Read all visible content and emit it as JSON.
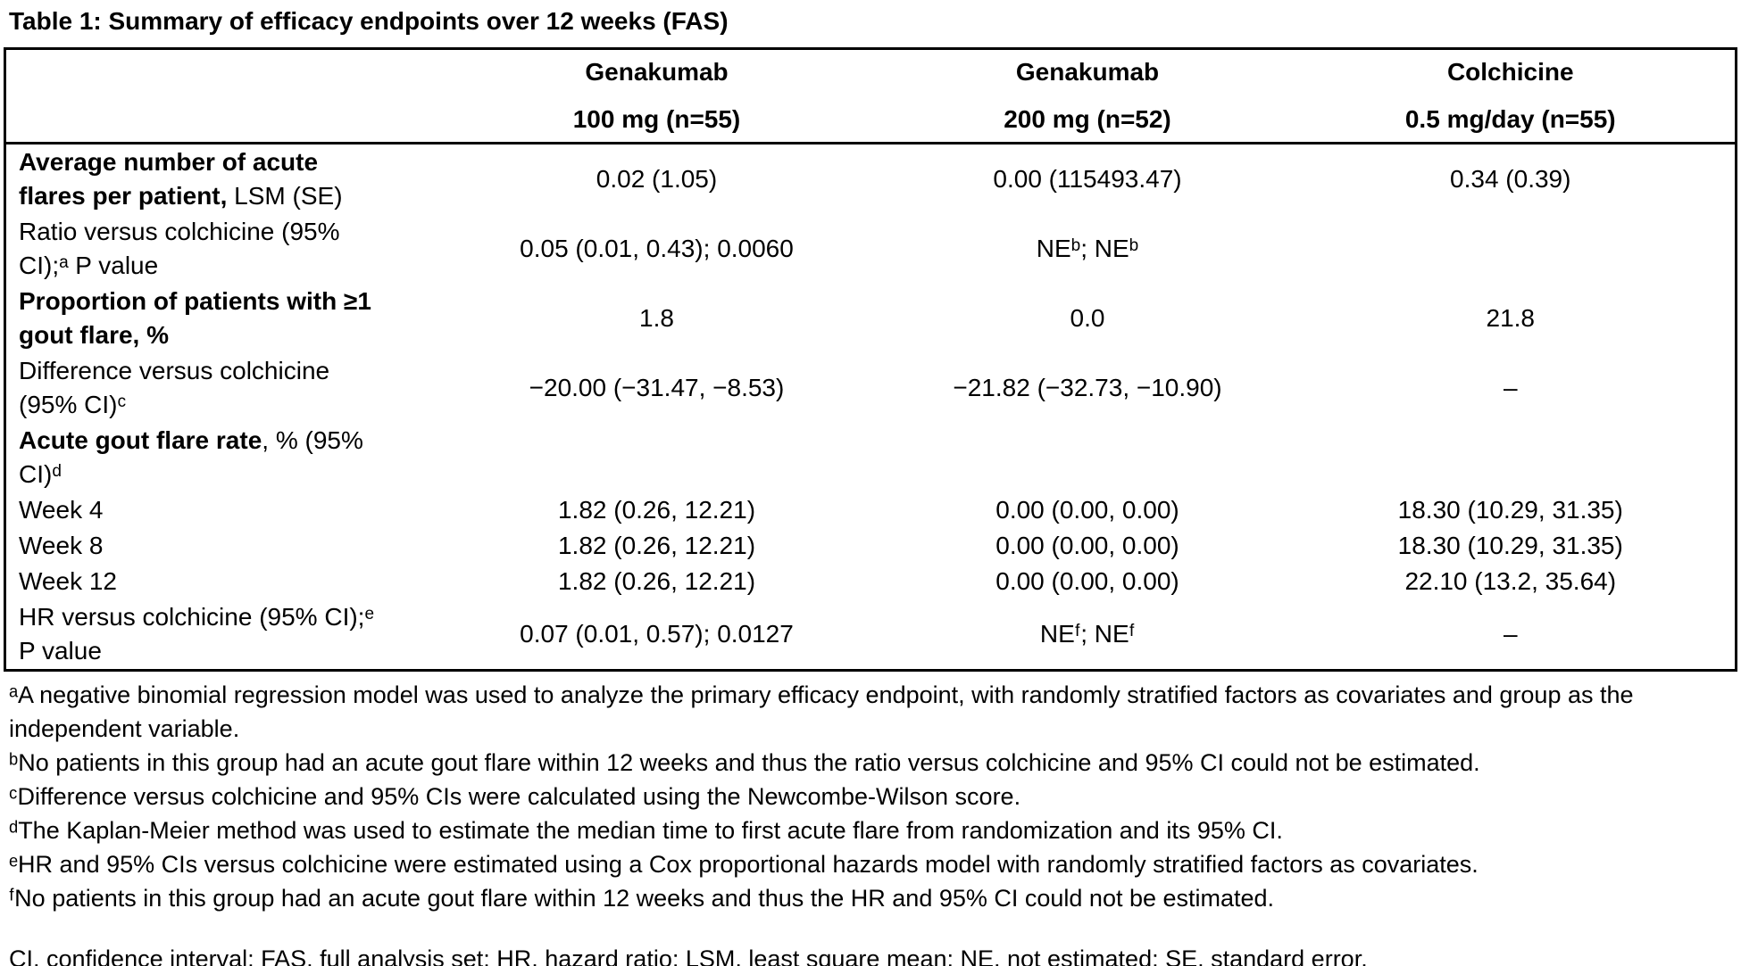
{
  "page": {
    "title": "Table 1: Summary of efficacy endpoints over 12 weeks (FAS)"
  },
  "colors": {
    "text": "#000000",
    "border": "#000000",
    "background": "#ffffff"
  },
  "table": {
    "header_columns": [
      {
        "line1": "Genakumab",
        "line2": "100 mg (n=55)"
      },
      {
        "line1": "Genakumab",
        "line2": "200 mg (n=52)"
      },
      {
        "line1": "Colchicine",
        "line2": "0.5 mg/day (n=55)"
      }
    ],
    "rows": [
      {
        "label_bold": "Average number of acute\nflares per patient,",
        "label_regular": " LSM (SE)",
        "values": [
          "0.02 (1.05)",
          "0.00 (115493.47)",
          "0.34 (0.39)"
        ]
      },
      {
        "label_bold": "",
        "label_regular": "Ratio versus colchicine (95%\nCI);ᵃ P value",
        "values": [
          "0.05 (0.01, 0.43); 0.0060",
          "NEᵇ; NEᵇ",
          ""
        ]
      },
      {
        "label_bold": "Proportion of patients with ≥1\ngout flare, %",
        "label_regular": "",
        "values": [
          "1.8",
          "0.0",
          "21.8"
        ]
      },
      {
        "label_bold": "",
        "label_regular": "Difference versus colchicine\n(95% CI)ᶜ",
        "values": [
          "−20.00 (−31.47, −8.53)",
          "−21.82 (−32.73, −10.90)",
          "–"
        ]
      },
      {
        "label_bold": "Acute gout flare rate",
        "label_regular": ", % (95%\nCI)ᵈ",
        "values": [
          "",
          "",
          ""
        ]
      },
      {
        "label_bold": "",
        "label_regular": "Week 4",
        "values": [
          "1.82 (0.26, 12.21)",
          "0.00 (0.00, 0.00)",
          "18.30 (10.29, 31.35)"
        ]
      },
      {
        "label_bold": "",
        "label_regular": "Week 8",
        "values": [
          "1.82 (0.26, 12.21)",
          "0.00 (0.00, 0.00)",
          "18.30 (10.29, 31.35)"
        ]
      },
      {
        "label_bold": "",
        "label_regular": "Week 12",
        "values": [
          "1.82 (0.26, 12.21)",
          "0.00 (0.00, 0.00)",
          "22.10 (13.2, 35.64)"
        ]
      },
      {
        "label_bold": "",
        "label_regular": "HR versus colchicine (95% CI);ᵉ\nP value",
        "values": [
          "0.07 (0.01, 0.57); 0.0127",
          "NEᶠ; NEᶠ",
          "–"
        ]
      }
    ]
  },
  "footnotes": [
    "ᵃA negative binomial regression model was used to analyze the primary efficacy endpoint, with randomly stratified factors as covariates and group as the independent variable.",
    "ᵇNo patients in this group had an acute gout flare within 12 weeks and thus the ratio versus colchicine and 95% CI could not be estimated.",
    "ᶜDifference versus colchicine and 95% CIs were calculated using the Newcombe-Wilson score.",
    "ᵈThe Kaplan-Meier method was used to estimate the median time to first acute flare from randomization and its 95% CI.",
    "ᵉHR and 95% CIs versus colchicine were estimated using a Cox proportional hazards model with randomly stratified factors as covariates.",
    "ᶠNo patients in this group had an acute gout flare within 12 weeks and thus the HR and 95% CI could not be estimated."
  ],
  "abbreviations": "CI, confidence interval; FAS, full analysis set; HR, hazard ratio; LSM, least square mean; NE, not estimated; SE, standard error."
}
